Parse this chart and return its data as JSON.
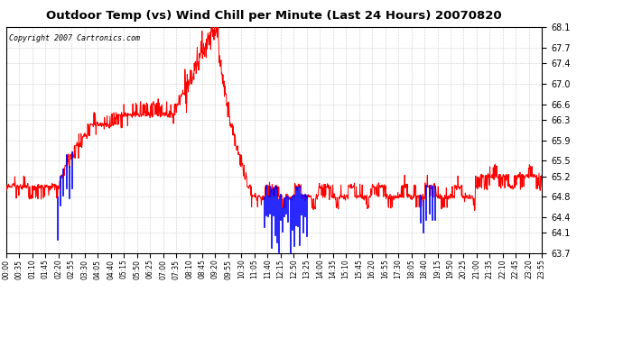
{
  "title": "Outdoor Temp (vs) Wind Chill per Minute (Last 24 Hours) 20070820",
  "copyright": "Copyright 2007 Cartronics.com",
  "background_color": "#ffffff",
  "plot_bg_color": "#ffffff",
  "grid_color": "#cccccc",
  "line_color_red": "#ff0000",
  "line_color_blue": "#0000ff",
  "yticks": [
    63.7,
    64.1,
    64.4,
    64.8,
    65.2,
    65.5,
    65.9,
    66.3,
    66.6,
    67.0,
    67.4,
    67.7,
    68.1
  ],
  "ymin": 63.7,
  "ymax": 68.1,
  "xtick_labels": [
    "00:00",
    "00:35",
    "01:10",
    "01:45",
    "02:20",
    "02:55",
    "03:30",
    "04:05",
    "04:40",
    "05:15",
    "05:50",
    "06:25",
    "07:00",
    "07:35",
    "08:10",
    "08:45",
    "09:20",
    "09:55",
    "10:30",
    "11:05",
    "11:40",
    "12:15",
    "12:50",
    "13:25",
    "14:00",
    "14:35",
    "15:10",
    "15:45",
    "16:20",
    "16:55",
    "17:30",
    "18:05",
    "18:40",
    "19:15",
    "19:50",
    "20:25",
    "21:00",
    "21:35",
    "22:10",
    "22:45",
    "23:20",
    "23:55"
  ]
}
